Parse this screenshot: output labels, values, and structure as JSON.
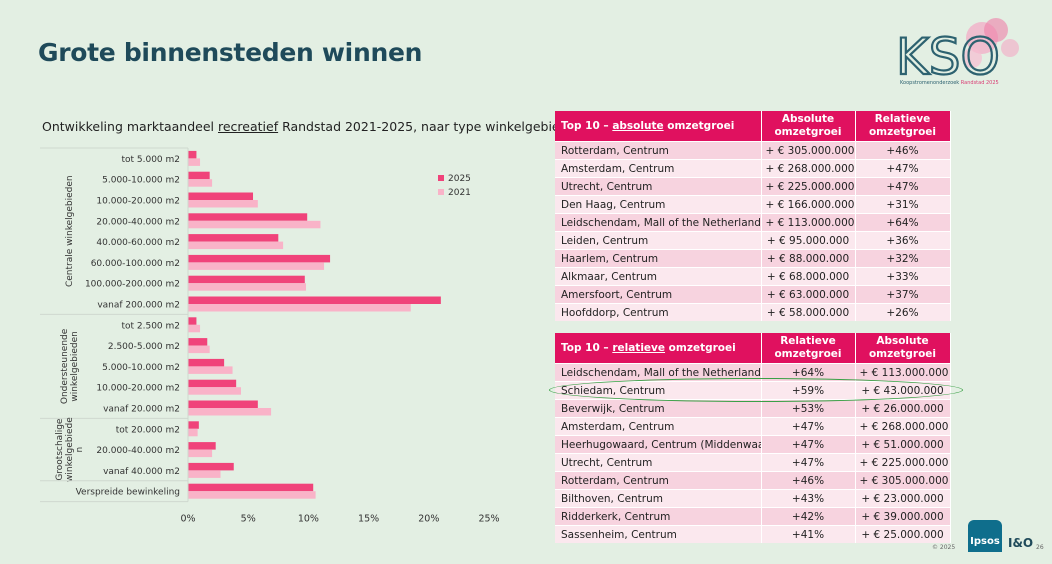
{
  "page": {
    "title": "Grote binnensteden winnen",
    "logo": {
      "text": "KSO",
      "subtitle_a": "Koopstromenonderzoek",
      "subtitle_b": "Randstad 2025"
    },
    "footer": {
      "copyright": "© 2025",
      "page_number": "26",
      "partner_a": "Ipsos",
      "partner_b": "I&O"
    }
  },
  "chart_data": {
    "type": "bar",
    "orientation": "horizontal",
    "title_pre": "Ontwikkeling marktaandeel ",
    "title_underlined": "recreatief",
    "title_post": " Randstad 2021-2025, naar type winkelgebied",
    "groups": [
      {
        "label_lines": [
          "Centrale winkelgebieden"
        ],
        "categories": [
          "tot 5.000 m2",
          "5.000-10.000 m2",
          "10.000-20.000 m2",
          "20.000-40.000 m2",
          "40.000-60.000 m2",
          "60.000-100.000 m2",
          "100.000-200.000 m2",
          "vanaf 200.000 m2"
        ]
      },
      {
        "label_lines": [
          "Ondersteunende",
          "winkelgebieden"
        ],
        "categories": [
          "tot 2.500 m2",
          "2.500-5.000 m2",
          "5.000-10.000 m2",
          "10.000-20.000 m2",
          "vanaf 20.000 m2"
        ]
      },
      {
        "label_lines": [
          "Grootschalige",
          "winkelgebiede",
          "n"
        ],
        "categories": [
          "tot 20.000 m2",
          "20.000-40.000 m2",
          "vanaf 40.000 m2"
        ]
      },
      {
        "label_lines": [],
        "categories": [
          "Verspreide bewinkeling"
        ]
      }
    ],
    "series": [
      {
        "name": "2025",
        "color": "#f0437a",
        "values": [
          0.7,
          1.8,
          5.4,
          9.9,
          7.5,
          11.8,
          9.7,
          21.0,
          0.7,
          1.6,
          3.0,
          4.0,
          5.8,
          0.9,
          2.3,
          3.8,
          10.4
        ]
      },
      {
        "name": "2021",
        "color": "#f9b3c8",
        "values": [
          1.0,
          2.0,
          5.8,
          11.0,
          7.9,
          11.3,
          9.8,
          18.5,
          1.0,
          1.8,
          3.7,
          4.4,
          6.9,
          0.8,
          2.0,
          2.7,
          10.6
        ]
      }
    ],
    "xlim": [
      0,
      25
    ],
    "xticks": [
      "0%",
      "5%",
      "10%",
      "15%",
      "20%",
      "25%"
    ],
    "legend_position": "right",
    "grid": false
  },
  "table_absolute": {
    "header": {
      "pre": "Top 10 – ",
      "underlined": "absolute",
      "post": " omzetgroei",
      "col2": "Absolute omzetgroei",
      "col3": "Relatieve omzetgroei"
    },
    "rows": [
      [
        "Rotterdam, Centrum",
        "+ € 305.000.000",
        "+46%"
      ],
      [
        "Amsterdam, Centrum",
        "+ € 268.000.000",
        "+47%"
      ],
      [
        "Utrecht, Centrum",
        "+ € 225.000.000",
        "+47%"
      ],
      [
        "Den Haag, Centrum",
        "+ € 166.000.000",
        "+31%"
      ],
      [
        "Leidschendam, Mall of the Netherlands",
        "+ € 113.000.000",
        "+64%"
      ],
      [
        "Leiden, Centrum",
        "+ € 95.000.000",
        "+36%"
      ],
      [
        "Haarlem, Centrum",
        "+ € 88.000.000",
        "+32%"
      ],
      [
        "Alkmaar, Centrum",
        "+ € 68.000.000",
        "+33%"
      ],
      [
        "Amersfoort, Centrum",
        "+ € 63.000.000",
        "+37%"
      ],
      [
        "Hoofddorp, Centrum",
        "+ € 58.000.000",
        "+26%"
      ]
    ]
  },
  "table_relative": {
    "header": {
      "pre": "Top 10 – ",
      "underlined": "relatieve",
      "post": " omzetgroei",
      "col2": "Relatieve omzetgroei",
      "col3": "Absolute omzetgroei"
    },
    "rows": [
      [
        "Leidschendam, Mall of the Netherlands",
        "+64%",
        "+ € 113.000.000"
      ],
      [
        "Schiedam, Centrum",
        "+59%",
        "+ € 43.000.000"
      ],
      [
        "Beverwijk, Centrum",
        "+53%",
        "+ € 26.000.000"
      ],
      [
        "Amsterdam, Centrum",
        "+47%",
        "+ € 268.000.000"
      ],
      [
        "Heerhugowaard, Centrum (Middenwaard)",
        "+47%",
        "+ € 51.000.000"
      ],
      [
        "Utrecht, Centrum",
        "+47%",
        "+ € 225.000.000"
      ],
      [
        "Rotterdam, Centrum",
        "+46%",
        "+ € 305.000.000"
      ],
      [
        "Bilthoven, Centrum",
        "+43%",
        "+ € 23.000.000"
      ],
      [
        "Ridderkerk, Centrum",
        "+42%",
        "+ € 39.000.000"
      ],
      [
        "Sassenheim, Centrum",
        "+41%",
        "+ € 25.000.000"
      ]
    ]
  }
}
